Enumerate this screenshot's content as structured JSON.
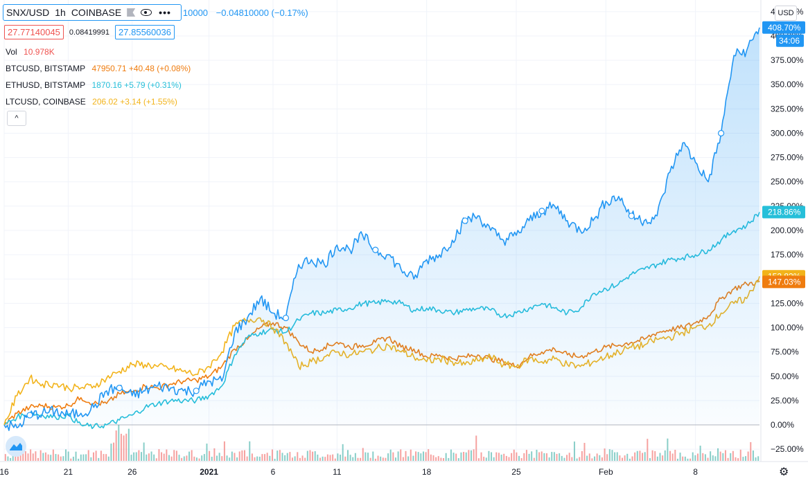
{
  "header": {
    "symbol": "SNX/USD",
    "interval": "1h",
    "exchange": "COINBASE",
    "more_label": "•••",
    "close_fragment": "10000",
    "change": "−0.04810000 (−0.17%)",
    "bid": "27.77140045",
    "spread": "0.08419991",
    "ask": "27.85560036"
  },
  "volume": {
    "label": "Vol",
    "value": "10.978K"
  },
  "compare_legend": [
    {
      "name": "BTCUSD, BITSTAMP",
      "value": "47950.71 +40.48 (+0.08%)",
      "color": "#ef7c0f"
    },
    {
      "name": "ETHUSD, BITSTAMP",
      "value": "1870.16 +5.79 (+0.31%)",
      "color": "#26bfd9"
    },
    {
      "name": "LTCUSD, COINBASE",
      "value": "206.02 +3.14 (+1.55%)",
      "color": "#f2b31a"
    }
  ],
  "collapse_label": "^",
  "currency_button": "USD",
  "countdown": "34:06",
  "colors": {
    "snx": "#2196f3",
    "btc": "#ef7c0f",
    "eth": "#26bfd9",
    "ltc": "#f2b31a",
    "vol_up": "#26a69a",
    "vol_down": "#ef5350",
    "grid": "#f0f3fa"
  },
  "chart_data": {
    "type": "line",
    "ylabel": "",
    "y_unit": "%",
    "ylim": [
      -37,
      437
    ],
    "y_ticks": [
      -25,
      0,
      25,
      50,
      75,
      100,
      125,
      150,
      175,
      200,
      225,
      250,
      275,
      300,
      325,
      350,
      375,
      400,
      425
    ],
    "y_tick_labels": [
      "−25.00%",
      "0.00%",
      "25.00%",
      "50.00%",
      "75.00%",
      "100.00%",
      "125.00%",
      "150.00%",
      "175.00%",
      "200.00%",
      "225.00%",
      "250.00%",
      "275.00%",
      "300.00%",
      "325.00%",
      "350.00%",
      "375.00%",
      "400.00%",
      "425.00%"
    ],
    "x_ticks": [
      "16",
      "21",
      "26",
      "2021",
      "6",
      "11",
      "18",
      "25",
      "Feb",
      "8"
    ],
    "x_tick_days": [
      0,
      5,
      10,
      16,
      21,
      26,
      33,
      40,
      47,
      54
    ],
    "x_range_days": [
      0,
      59
    ],
    "x": [
      0,
      1,
      2,
      3,
      4,
      5,
      6,
      7,
      8,
      9,
      10,
      11,
      12,
      13,
      14,
      15,
      16,
      17,
      18,
      19,
      20,
      21,
      22,
      23,
      24,
      25,
      26,
      27,
      28,
      29,
      30,
      31,
      32,
      33,
      34,
      35,
      36,
      37,
      38,
      39,
      40,
      41,
      42,
      43,
      44,
      45,
      46,
      47,
      48,
      49,
      50,
      51,
      52,
      53,
      54,
      55,
      56,
      57,
      58,
      59
    ],
    "series": [
      {
        "name": "SNX/USD",
        "values": [
          0,
          -3,
          10,
          12,
          14,
          10,
          12,
          18,
          35,
          38,
          30,
          35,
          40,
          38,
          35,
          35,
          45,
          45,
          95,
          110,
          130,
          115,
          110,
          165,
          170,
          165,
          185,
          180,
          195,
          180,
          175,
          160,
          150,
          170,
          175,
          190,
          210,
          215,
          200,
          190,
          195,
          210,
          220,
          225,
          210,
          200,
          210,
          230,
          235,
          215,
          210,
          215,
          260,
          290,
          270,
          250,
          300,
          380,
          385,
          408.7
        ]
      },
      {
        "name": "BTCUSD, BITSTAMP",
        "values": [
          0,
          12,
          18,
          20,
          18,
          20,
          28,
          22,
          22,
          32,
          34,
          40,
          38,
          42,
          45,
          46,
          50,
          60,
          78,
          88,
          100,
          105,
          100,
          85,
          75,
          80,
          85,
          80,
          82,
          85,
          90,
          80,
          78,
          70,
          72,
          68,
          70,
          72,
          68,
          65,
          60,
          70,
          75,
          78,
          72,
          70,
          75,
          80,
          82,
          85,
          88,
          95,
          98,
          100,
          105,
          112,
          130,
          140,
          145,
          147.03
        ]
      },
      {
        "name": "ETHUSD, BITSTAMP",
        "values": [
          0,
          8,
          12,
          10,
          8,
          10,
          0,
          -2,
          0,
          5,
          10,
          18,
          22,
          25,
          25,
          25,
          30,
          40,
          72,
          90,
          95,
          98,
          95,
          108,
          115,
          115,
          118,
          120,
          125,
          125,
          128,
          125,
          118,
          120,
          118,
          115,
          118,
          120,
          118,
          112,
          115,
          120,
          125,
          120,
          115,
          120,
          135,
          140,
          145,
          155,
          160,
          165,
          170,
          172,
          175,
          180,
          190,
          200,
          205,
          218.86
        ]
      },
      {
        "name": "LTCUSD, COINBASE",
        "values": [
          0,
          30,
          48,
          42,
          42,
          38,
          38,
          40,
          48,
          55,
          62,
          62,
          60,
          58,
          55,
          52,
          60,
          75,
          102,
          108,
          110,
          100,
          85,
          60,
          65,
          70,
          75,
          72,
          75,
          78,
          82,
          75,
          70,
          65,
          68,
          65,
          62,
          66,
          70,
          62,
          60,
          68,
          65,
          68,
          62,
          60,
          65,
          70,
          75,
          80,
          82,
          88,
          90,
          95,
          100,
          102,
          115,
          125,
          130,
          152.82
        ]
      }
    ],
    "last_value_labels": [
      "408.70%",
      "218.86%",
      "152.82%",
      "147.03%"
    ]
  }
}
